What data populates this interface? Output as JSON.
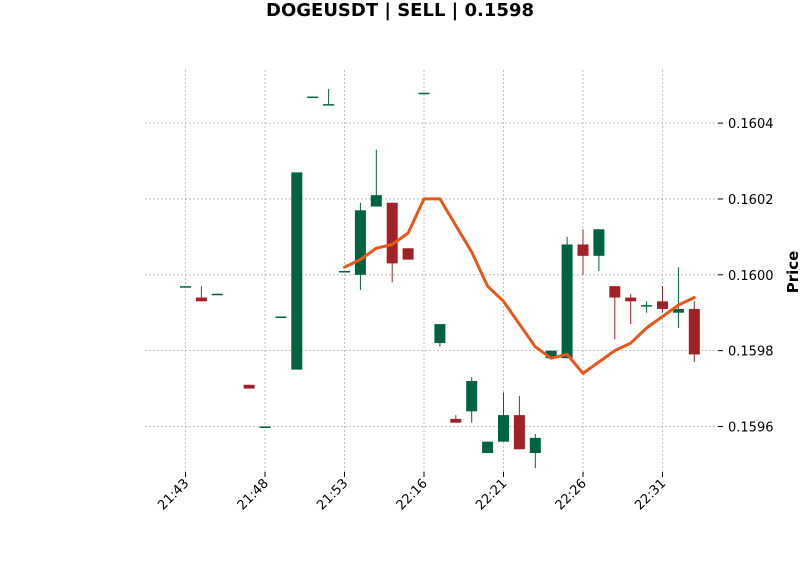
{
  "chart_data": {
    "type": "candlestick",
    "title": "DOGEUSDT | SELL | 0.1598",
    "ylabel": "Price",
    "xlabel": "",
    "grid": true,
    "colors": {
      "up": "#006340",
      "down": "#a02128",
      "ma": "#e8571a",
      "grid": "#b0b0b0"
    },
    "ylim": [
      0.15948,
      0.16054
    ],
    "yticks": [
      0.1596,
      0.1598,
      0.16,
      0.1602,
      0.1604
    ],
    "ytick_labels": [
      "0.1596",
      "0.1598",
      "0.1600",
      "0.1602",
      "0.1604"
    ],
    "xticks": [
      {
        "index": 0,
        "label": "21:43"
      },
      {
        "index": 5,
        "label": "21:48"
      },
      {
        "index": 10,
        "label": "21:53"
      },
      {
        "index": 15,
        "label": "22:16"
      },
      {
        "index": 20,
        "label": "22:21"
      },
      {
        "index": 25,
        "label": "22:26"
      },
      {
        "index": 30,
        "label": "22:31"
      }
    ],
    "candles": [
      {
        "o": 0.15997,
        "h": 0.15997,
        "l": 0.15997,
        "c": 0.15997
      },
      {
        "o": 0.15994,
        "h": 0.15997,
        "l": 0.15993,
        "c": 0.15993
      },
      {
        "o": 0.15995,
        "h": 0.15995,
        "l": 0.15995,
        "c": 0.15995
      },
      null,
      {
        "o": 0.15971,
        "h": 0.15971,
        "l": 0.1597,
        "c": 0.1597
      },
      {
        "o": 0.1596,
        "h": 0.1596,
        "l": 0.1596,
        "c": 0.1596
      },
      {
        "o": 0.15989,
        "h": 0.15989,
        "l": 0.15989,
        "c": 0.15989
      },
      {
        "o": 0.15975,
        "h": 0.16027,
        "l": 0.15975,
        "c": 0.16027
      },
      {
        "o": 0.16047,
        "h": 0.16047,
        "l": 0.16047,
        "c": 0.16047
      },
      {
        "o": 0.16045,
        "h": 0.16049,
        "l": 0.16045,
        "c": 0.16045
      },
      {
        "o": 0.16001,
        "h": 0.16001,
        "l": 0.16001,
        "c": 0.16001
      },
      {
        "o": 0.16,
        "h": 0.16019,
        "l": 0.15996,
        "c": 0.16017
      },
      {
        "o": 0.16018,
        "h": 0.16033,
        "l": 0.16018,
        "c": 0.16021
      },
      {
        "o": 0.16019,
        "h": 0.16019,
        "l": 0.15998,
        "c": 0.16003
      },
      {
        "o": 0.16007,
        "h": 0.16007,
        "l": 0.16004,
        "c": 0.16004
      },
      {
        "o": 0.16048,
        "h": 0.16048,
        "l": 0.16048,
        "c": 0.16048
      },
      {
        "o": 0.15982,
        "h": 0.15987,
        "l": 0.15981,
        "c": 0.15987
      },
      {
        "o": 0.15962,
        "h": 0.15963,
        "l": 0.15961,
        "c": 0.15961
      },
      {
        "o": 0.15964,
        "h": 0.15973,
        "l": 0.15961,
        "c": 0.15972
      },
      {
        "o": 0.15953,
        "h": 0.15956,
        "l": 0.15953,
        "c": 0.15956
      },
      {
        "o": 0.15956,
        "h": 0.15969,
        "l": 0.15956,
        "c": 0.15963
      },
      {
        "o": 0.15963,
        "h": 0.15968,
        "l": 0.15954,
        "c": 0.15954
      },
      {
        "o": 0.15953,
        "h": 0.15958,
        "l": 0.15949,
        "c": 0.15957
      },
      {
        "o": 0.15978,
        "h": 0.1598,
        "l": 0.15978,
        "c": 0.1598
      },
      {
        "o": 0.15978,
        "h": 0.1601,
        "l": 0.15978,
        "c": 0.16008
      },
      {
        "o": 0.16008,
        "h": 0.16012,
        "l": 0.16,
        "c": 0.16005
      },
      {
        "o": 0.16005,
        "h": 0.16012,
        "l": 0.16001,
        "c": 0.16012
      },
      {
        "o": 0.15997,
        "h": 0.15997,
        "l": 0.15983,
        "c": 0.15994
      },
      {
        "o": 0.15994,
        "h": 0.15995,
        "l": 0.15987,
        "c": 0.15993
      },
      {
        "o": 0.15992,
        "h": 0.15993,
        "l": 0.1599,
        "c": 0.15992
      },
      {
        "o": 0.15993,
        "h": 0.15997,
        "l": 0.1599,
        "c": 0.15991
      },
      {
        "o": 0.1599,
        "h": 0.16002,
        "l": 0.15986,
        "c": 0.15991
      },
      {
        "o": 0.15991,
        "h": 0.15993,
        "l": 0.15977,
        "c": 0.15979
      }
    ],
    "ma": [
      null,
      null,
      null,
      null,
      null,
      null,
      null,
      null,
      null,
      null,
      0.16002,
      0.16004,
      0.16007,
      0.16008,
      0.16011,
      0.1602,
      0.1602,
      0.16013,
      0.16006,
      0.15997,
      0.15993,
      0.15987,
      0.15981,
      0.15978,
      0.15979,
      0.15974,
      0.15977,
      0.1598,
      0.15982,
      0.15986,
      0.15989,
      0.15992,
      0.15994
    ]
  }
}
